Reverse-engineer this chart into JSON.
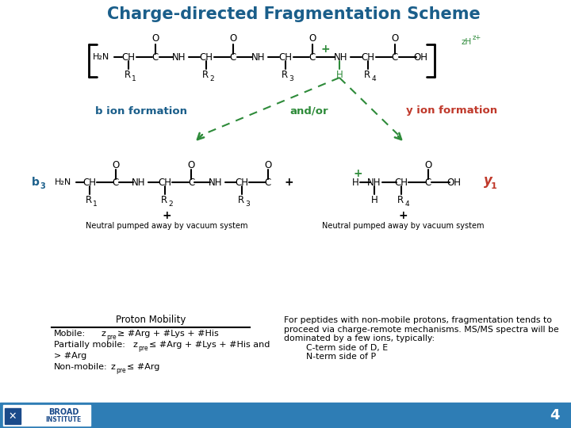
{
  "title": "Charge-directed Fragmentation Scheme",
  "title_color": "#1a5e8a",
  "title_fontsize": 15,
  "background_color": "#ffffff",
  "footer_color": "#2e7db5",
  "green_color": "#2e8b3a",
  "blue_color": "#1a5e8a",
  "red_color": "#c0392b",
  "black_color": "#000000",
  "b_ion_label": "b ion formation",
  "y_ion_label": "y ion formation",
  "andor_label": "and/or",
  "neutral_text": "Neutral pumped away by vacuum system",
  "proton_mobility_text": "Proton Mobility",
  "right_text": "For peptides with non-mobile protons, fragmentation tends to\nproceed via charge-remote mechanisms. MS/MS spectra will be\ndominated by a few ions, typically:\n        C-term side of D, E\n        N-term side of P"
}
